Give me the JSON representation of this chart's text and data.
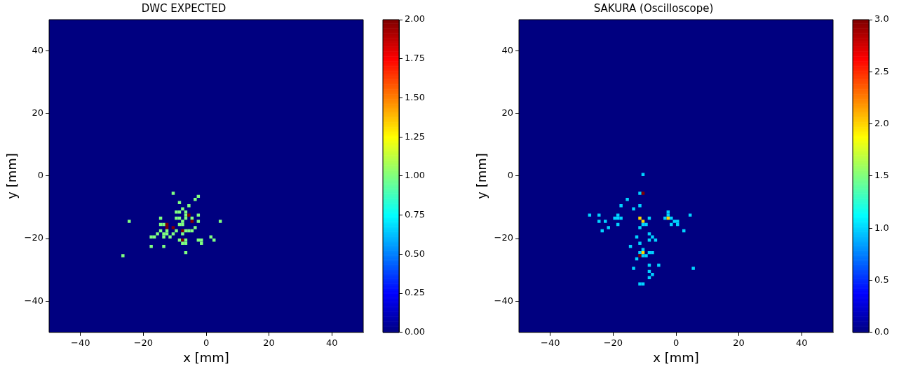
{
  "chart_data": [
    {
      "type": "scatter",
      "title": "DWC EXPECTED",
      "xlabel": "x [mm]",
      "ylabel": "y [mm]",
      "marker": "square",
      "xlim": [
        -50,
        50
      ],
      "ylim": [
        -50,
        50
      ],
      "xticks": [
        -40,
        -20,
        0,
        20,
        40
      ],
      "yticks": [
        -40,
        -20,
        0,
        20,
        40
      ],
      "clim": [
        0,
        2
      ],
      "cticks": [
        {
          "value": 0,
          "label": "0.00"
        },
        {
          "value": 0.25,
          "label": "0.25"
        },
        {
          "value": 0.5,
          "label": "0.50"
        },
        {
          "value": 0.75,
          "label": "0.75"
        },
        {
          "value": 1,
          "label": "1.00"
        },
        {
          "value": 1.25,
          "label": "1.25"
        },
        {
          "value": 1.5,
          "label": "1.50"
        },
        {
          "value": 1.75,
          "label": "1.75"
        },
        {
          "value": 2,
          "label": "2.00"
        }
      ],
      "x": [
        -10.5,
        -2.5,
        -3.5,
        -8.5,
        -5.5,
        -7.5,
        -9.5,
        -8.5,
        -6.5,
        -6.5,
        -5.5,
        -2.5,
        -14.5,
        -9.5,
        -8.5,
        -6.5,
        -4.5,
        -4.5,
        -2.5,
        4.5,
        -24.5,
        -7.5,
        -14.5,
        -13.5,
        -12.5,
        -8.5,
        -7.5,
        -12.5,
        -10.5,
        -3.5,
        -14.5,
        -12.5,
        -9.5,
        -7.5,
        -6.5,
        -5.5,
        -4.5,
        -15.5,
        -13.5,
        -12.5,
        -10.5,
        -7.5,
        -17.5,
        -16.5,
        -13.5,
        -11.5,
        1.5,
        -8.5,
        -7.5,
        -6.5,
        -2.5,
        -1.5,
        2.5,
        -7.5,
        -6.5,
        -1.5,
        -17.5,
        -13.5,
        -6.5,
        -26.5
      ],
      "values": [
        -5.5,
        -6.5,
        -7.5,
        -8.5,
        -9.5,
        -10.5,
        -11.5,
        -11.5,
        -11.5,
        -12.5,
        -12.5,
        -12.5,
        -13.5,
        -13.5,
        -13.5,
        -13.5,
        -13.5,
        -14.5,
        -14.5,
        -14.5,
        -14.5,
        -14.5,
        -15.5,
        -15.5,
        -15.5,
        -15.5,
        -15.5,
        -16.5,
        -16.5,
        -16.5,
        -17.5,
        -17.5,
        -17.5,
        -17.5,
        -17.5,
        -17.5,
        -17.5,
        -18.5,
        -18.5,
        -18.5,
        -18.5,
        -18.5,
        -19.5,
        -19.5,
        -19.5,
        -19.5,
        -19.5,
        -20.5,
        -20.5,
        -20.5,
        -20.5,
        -20.5,
        -20.5,
        -21.5,
        -21.5,
        -21.5,
        -22.5,
        -22.5,
        -24.5,
        -25.5
      ],
      "cvalues": [
        1,
        1,
        1,
        1,
        1,
        1,
        1,
        1,
        1,
        1,
        2,
        1,
        1,
        1,
        1,
        1,
        1,
        2,
        1,
        1,
        1,
        1,
        1,
        1,
        2,
        1,
        1,
        2,
        2,
        1,
        1,
        1,
        1,
        2,
        1,
        1,
        1,
        1,
        1,
        1,
        1,
        1,
        1,
        1,
        1,
        1,
        1,
        1,
        2,
        1,
        1,
        1,
        1,
        1,
        1,
        1,
        1,
        1,
        1,
        1
      ]
    },
    {
      "type": "scatter",
      "title": "SAKURA (Oscilloscope)",
      "xlabel": "x [mm]",
      "ylabel": "y [mm]",
      "marker": "square",
      "xlim": [
        -50,
        50
      ],
      "ylim": [
        -50,
        50
      ],
      "xticks": [
        -40,
        -20,
        0,
        20,
        40
      ],
      "yticks": [
        -40,
        -20,
        0,
        20,
        40
      ],
      "clim": [
        0,
        3
      ],
      "cticks": [
        {
          "value": 0,
          "label": "0.0"
        },
        {
          "value": 0.5,
          "label": "0.5"
        },
        {
          "value": 1,
          "label": "1.0"
        },
        {
          "value": 1.5,
          "label": "1.5"
        },
        {
          "value": 2,
          "label": "2.0"
        },
        {
          "value": 2.5,
          "label": "2.5"
        },
        {
          "value": 3,
          "label": "3.0"
        }
      ],
      "x": [
        -10.5,
        -11.5,
        -10.5,
        -15.5,
        -17.5,
        -11.5,
        -13.5,
        -2.5,
        -2.5,
        -27.5,
        -24.5,
        -18.5,
        4.5,
        -19.5,
        -18.5,
        -17.5,
        -11.5,
        -8.5,
        -3.5,
        -2.5,
        -1.5,
        -24.5,
        -22.5,
        -10.5,
        -0.5,
        0.5,
        -18.5,
        -10.5,
        -9.5,
        -1.5,
        0.5,
        -21.5,
        -11.5,
        -23.5,
        2.5,
        -8.5,
        -12.5,
        -7.5,
        -8.5,
        -6.5,
        -11.5,
        -14.5,
        -10.5,
        -11.5,
        -10.5,
        -8.5,
        -7.5,
        -11.5,
        -10.5,
        -9.5,
        -12.5,
        -8.5,
        -5.5,
        -13.5,
        5.5,
        -8.5,
        -7.5,
        -8.5,
        -11.5,
        -10.5
      ],
      "values": [
        0.5,
        -5.5,
        -5.5,
        -7.5,
        -9.5,
        -9.5,
        -10.5,
        -11.5,
        -12.5,
        -12.5,
        -12.5,
        -12.5,
        -12.5,
        -13.5,
        -13.5,
        -13.5,
        -13.5,
        -13.5,
        -13.5,
        -13.5,
        -13.5,
        -14.5,
        -14.5,
        -14.5,
        -14.5,
        -14.5,
        -15.5,
        -15.5,
        -15.5,
        -15.5,
        -15.5,
        -16.5,
        -16.5,
        -17.5,
        -17.5,
        -18.5,
        -19.5,
        -19.5,
        -20.5,
        -20.5,
        -21.5,
        -22.5,
        -23.5,
        -24.5,
        -24.5,
        -24.5,
        -24.5,
        -25.5,
        -25.5,
        -25.5,
        -26.5,
        -28.5,
        -28.5,
        -29.5,
        -29.5,
        -30.5,
        -31.5,
        -32.5,
        -34.5,
        -34.5
      ],
      "cvalues": [
        1,
        1,
        3,
        1,
        1,
        1,
        1,
        1,
        1,
        1,
        1,
        1,
        1,
        1,
        1,
        1,
        2,
        1,
        1,
        2,
        1,
        1,
        1,
        2,
        1,
        1,
        1,
        1,
        1,
        1,
        1,
        1,
        1,
        1,
        1,
        1,
        1,
        1,
        1,
        1,
        1,
        1,
        1,
        1,
        2,
        1,
        1,
        3,
        1,
        1,
        1,
        1,
        1,
        1,
        1,
        1,
        1,
        1,
        1,
        1
      ]
    }
  ]
}
